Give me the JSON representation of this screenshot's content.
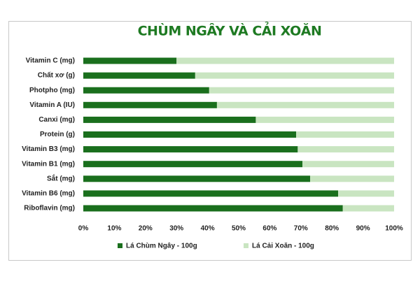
{
  "chart_data": {
    "type": "stacked_barh",
    "title": "CHÙM NGÂY VÀ CẢI XOĂN",
    "categories": [
      "Vitamin C (mg)",
      "Chất xơ (g)",
      "Photpho (mg)",
      "Vitamin A (IU)",
      "Canxi (mg)",
      "Protein (g)",
      "Vitamin B3 (mg)",
      "Vitamin B1 (mg)",
      "Sắt (mg)",
      "Vitamin B6 (mg)",
      "Riboflavin (mg)"
    ],
    "series": [
      {
        "name": "Lá Chùm Ngây - 100g",
        "color": "#1a6f1d",
        "values": [
          30,
          36,
          40.5,
          43,
          55.5,
          68.5,
          69,
          70.5,
          73,
          82,
          83.5
        ]
      },
      {
        "name": "Lá Cải Xoăn - 100g",
        "color": "#c9e5c1",
        "values": [
          70,
          64,
          59.5,
          57,
          44.5,
          31.5,
          31,
          29.5,
          27,
          18,
          16.5
        ]
      }
    ],
    "xlim": [
      0,
      100
    ],
    "xticks": [
      {
        "value": 0,
        "label": "0%"
      },
      {
        "value": 10,
        "label": "10%"
      },
      {
        "value": 20,
        "label": "20%"
      },
      {
        "value": 30,
        "label": "30%"
      },
      {
        "value": 40,
        "label": "40%"
      },
      {
        "value": 50,
        "label": "50%"
      },
      {
        "value": 60,
        "label": "60%"
      },
      {
        "value": 70,
        "label": "70%"
      },
      {
        "value": 80,
        "label": "80%"
      },
      {
        "value": 90,
        "label": "90%"
      },
      {
        "value": 100,
        "label": "100%"
      }
    ],
    "legend": "bottom"
  }
}
